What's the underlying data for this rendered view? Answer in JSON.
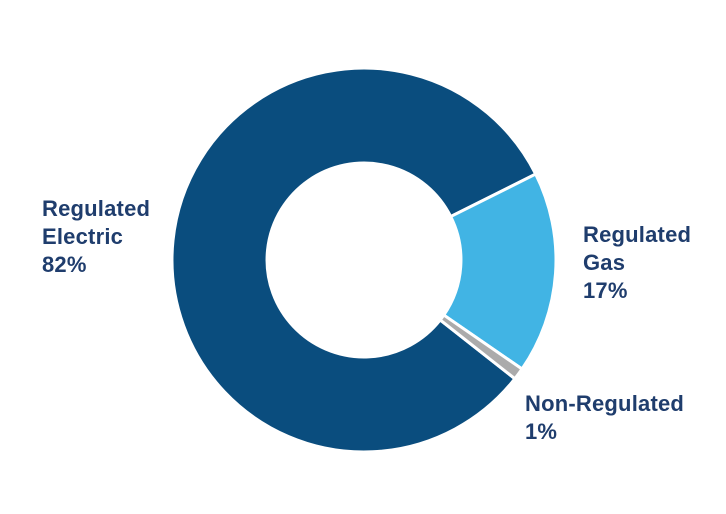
{
  "page": {
    "background_color": "#FFFFFF",
    "text_color": "#1F3D6D"
  },
  "chart_data": {
    "type": "pie",
    "variant": "donut",
    "title": "",
    "categories": [
      "Regulated Electric",
      "Regulated Gas",
      "Non-Regulated"
    ],
    "values": [
      82,
      17,
      1
    ],
    "unit": "%",
    "colors": [
      "#0A4D7E",
      "#41B4E4",
      "#ABABAB"
    ],
    "slice_gap_color": "#FFFFFF",
    "slice_gap_width": 3,
    "start_angle_deg": 128.2,
    "clockwise": true,
    "inner_radius_ratio": 0.505,
    "legend_position": "none",
    "labels_layout": "outside",
    "data_labels": [
      "Regulated Electric 82%",
      "Regulated Gas 17%",
      "Non-Regulated 1%"
    ]
  },
  "labels": {
    "electric": {
      "lines": [
        "Regulated",
        "Electric",
        "82%"
      ],
      "color": "#1F3D6D"
    },
    "gas": {
      "lines": [
        "Regulated",
        "Gas",
        "17%"
      ],
      "color": "#1F3D6D"
    },
    "non_regulated": {
      "lines": [
        "Non-Regulated",
        "1%"
      ],
      "color": "#1F3D6D"
    }
  }
}
